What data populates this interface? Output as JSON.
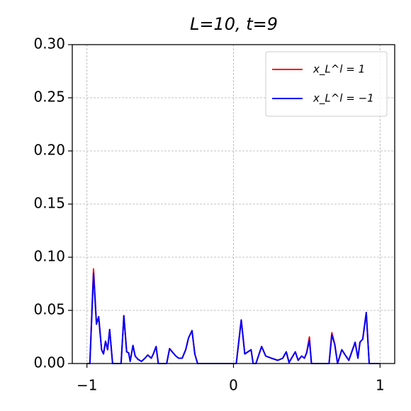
{
  "chart_data": {
    "type": "line",
    "title": "L=10, t=9",
    "x": [
      -1.0,
      -0.98,
      -0.955,
      -0.935,
      -0.92,
      -0.9,
      -0.887,
      -0.873,
      -0.859,
      -0.845,
      -0.825,
      -0.767,
      -0.748,
      -0.729,
      -0.715,
      -0.705,
      -0.686,
      -0.671,
      -0.652,
      -0.628,
      -0.604,
      -0.585,
      -0.561,
      -0.547,
      -0.528,
      -0.513,
      -0.456,
      -0.436,
      -0.412,
      -0.393,
      -0.374,
      -0.35,
      -0.326,
      -0.307,
      -0.283,
      -0.264,
      -0.245,
      0.019,
      0.053,
      0.077,
      0.12,
      0.134,
      0.153,
      0.192,
      0.22,
      0.259,
      0.302,
      0.336,
      0.36,
      0.379,
      0.422,
      0.441,
      0.465,
      0.484,
      0.499,
      0.518,
      0.532,
      0.652,
      0.671,
      0.691,
      0.71,
      0.739,
      0.767,
      0.787,
      0.83,
      0.849,
      0.863,
      0.882,
      0.906,
      0.926,
      1.0
    ],
    "series": [
      {
        "name": "x_L^l = 1",
        "color": "#ff0000",
        "values": [
          0,
          0,
          0.089,
          0.037,
          0.044,
          0.013,
          0.009,
          0.021,
          0.013,
          0.032,
          0,
          0,
          0.045,
          0.011,
          0.01,
          0.002,
          0.017,
          0.007,
          0.004,
          0.002,
          0.005,
          0.008,
          0.005,
          0.009,
          0.016,
          0,
          0,
          0.014,
          0.01,
          0.007,
          0.005,
          0.005,
          0.013,
          0.024,
          0.031,
          0.009,
          0,
          0,
          0.041,
          0.009,
          0.013,
          0,
          0,
          0.016,
          0.007,
          0.005,
          0.003,
          0.005,
          0.011,
          0.001,
          0.011,
          0.003,
          0.007,
          0.005,
          0.01,
          0.025,
          0,
          0,
          0.029,
          0.018,
          0,
          0.013,
          0.007,
          0.003,
          0.02,
          0.005,
          0.02,
          0.023,
          0.048,
          0,
          0
        ]
      },
      {
        "name": "x_L^l = −1",
        "color": "#0000ff",
        "values": [
          0,
          0,
          0.085,
          0.037,
          0.044,
          0.013,
          0.009,
          0.021,
          0.013,
          0.032,
          0,
          0,
          0.045,
          0.011,
          0.01,
          0.002,
          0.017,
          0.007,
          0.004,
          0.002,
          0.005,
          0.008,
          0.005,
          0.009,
          0.016,
          0,
          0,
          0.014,
          0.01,
          0.007,
          0.005,
          0.005,
          0.013,
          0.024,
          0.031,
          0.009,
          0,
          0,
          0.041,
          0.009,
          0.013,
          0,
          0,
          0.016,
          0.007,
          0.005,
          0.003,
          0.005,
          0.011,
          0.001,
          0.011,
          0.003,
          0.007,
          0.005,
          0.01,
          0.022,
          0,
          0,
          0.027,
          0.018,
          0,
          0.013,
          0.007,
          0.003,
          0.02,
          0.005,
          0.02,
          0.023,
          0.048,
          0,
          0
        ]
      }
    ],
    "xlim": [
      -1.1,
      1.1
    ],
    "xticks": [
      {
        "value": -1,
        "label": "−1"
      },
      0,
      1
    ],
    "ylim": [
      0,
      0.3
    ],
    "yticks": [
      {
        "value": 0,
        "label": "0.00"
      },
      {
        "value": 0.05,
        "label": "0.05"
      },
      {
        "value": 0.1,
        "label": "0.10"
      },
      {
        "value": 0.15,
        "label": "0.15"
      },
      {
        "value": 0.2,
        "label": "0.20"
      },
      {
        "value": 0.25,
        "label": "0.25"
      },
      {
        "value": 0.3,
        "label": "0.30"
      }
    ],
    "grid": true,
    "legend": "upper right"
  }
}
